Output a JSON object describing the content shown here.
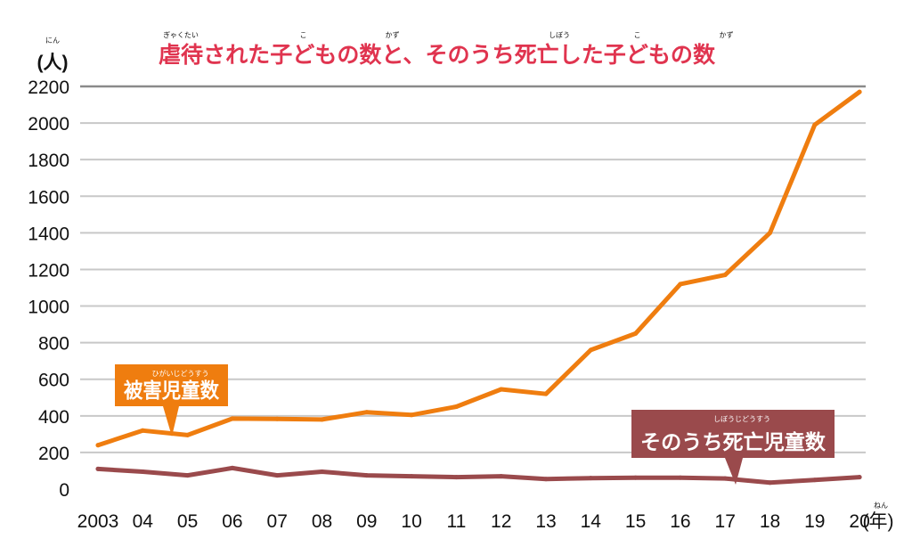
{
  "chart_data": {
    "type": "line",
    "title": "虐待された子どもの数と、そのうち死亡した子どもの数",
    "title_ruby": [
      {
        "text": "ぎゃくたい",
        "char_index": 0,
        "span": 2
      },
      {
        "text": "こ",
        "char_index": 6,
        "span": 1
      },
      {
        "text": "かず",
        "char_index": 10,
        "span": 1
      },
      {
        "text": "しぼう",
        "char_index": 17,
        "span": 2
      },
      {
        "text": "こ",
        "char_index": 21,
        "span": 1
      },
      {
        "text": "かず",
        "char_index": 25,
        "span": 1
      }
    ],
    "y_unit": "(人)",
    "y_unit_ruby": "にん",
    "x_unit": "(年)",
    "x_unit_ruby": "ねん",
    "categories": [
      "2003",
      "04",
      "05",
      "06",
      "07",
      "08",
      "09",
      "10",
      "11",
      "12",
      "13",
      "14",
      "15",
      "16",
      "17",
      "18",
      "19",
      "20"
    ],
    "y_ticks": [
      0,
      200,
      400,
      600,
      800,
      1000,
      1200,
      1400,
      1600,
      1800,
      2000,
      2200
    ],
    "ylim": [
      0,
      2200
    ],
    "grid": true,
    "series": [
      {
        "name": "被害児童数",
        "name_ruby": "ひがいじどうすう",
        "color": "#ef7d0f",
        "values": [
          240,
          320,
          295,
          385,
          383,
          380,
          420,
          405,
          450,
          545,
          520,
          760,
          850,
          1120,
          1170,
          1400,
          1990,
          2170
        ]
      },
      {
        "name": "そのうち死亡児童数",
        "name_ruby": "しぼうじどうすう",
        "color": "#9a4a4c",
        "values": [
          110,
          95,
          75,
          115,
          75,
          95,
          75,
          70,
          65,
          70,
          55,
          60,
          62,
          62,
          58,
          35,
          50,
          65
        ]
      }
    ]
  }
}
